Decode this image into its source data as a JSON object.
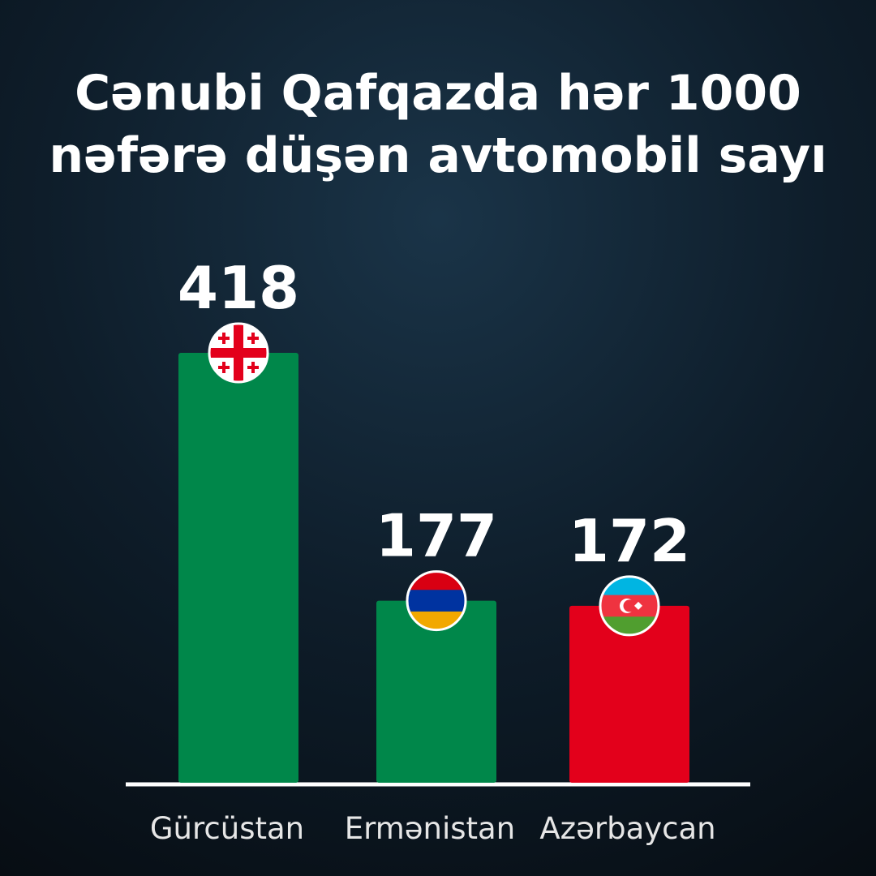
{
  "chart_data": {
    "type": "bar",
    "title": [
      "Cənubi Qafqazda hər 1000",
      "nəfərə düşən avtomobil sayı"
    ],
    "categories": [
      "Gürcüstan",
      "Ermənistan",
      "Azərbaycan"
    ],
    "values": [
      418,
      177,
      172
    ],
    "colors": [
      "#00874a",
      "#00874a",
      "#e3001b"
    ]
  }
}
